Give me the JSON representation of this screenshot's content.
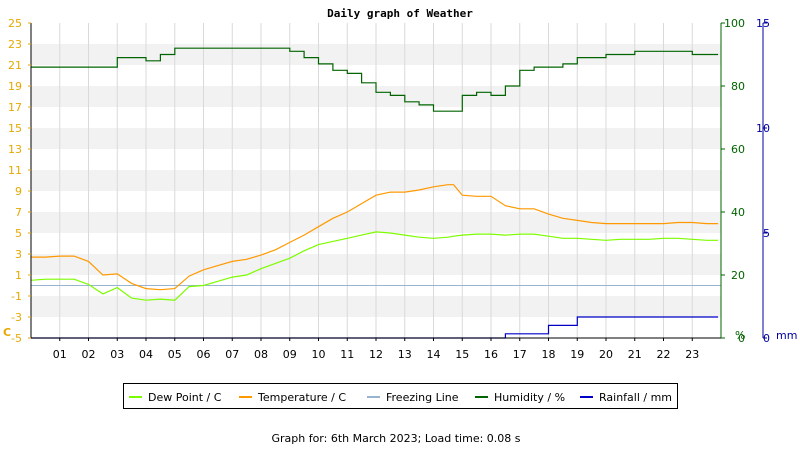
{
  "title": "Daily graph of Weather",
  "footer": "Graph for: 6th March 2023; Load time: 0.08 s",
  "colors": {
    "dew_point": "#7cfc00",
    "temperature": "#ff9900",
    "freezing": "#99b4d1",
    "humidity": "#006400",
    "rainfall": "#0000c8",
    "left_axis": "#e6a800",
    "humidity_axis": "#006400",
    "rain_axis": "#0000a0"
  },
  "chart_data": {
    "type": "line",
    "x_hours": [
      0.0,
      0.5,
      1.0,
      1.5,
      2.0,
      2.5,
      3.0,
      3.5,
      4.0,
      4.5,
      5.0,
      5.5,
      6.0,
      6.5,
      7.0,
      7.5,
      8.0,
      8.5,
      9.0,
      9.5,
      10.0,
      10.5,
      11.0,
      11.5,
      12.0,
      12.5,
      13.0,
      13.5,
      14.0,
      14.5,
      14.7,
      15.0,
      15.5,
      16.0,
      16.5,
      17.0,
      17.5,
      18.0,
      18.5,
      19.0,
      19.5,
      20.0,
      20.5,
      21.0,
      21.5,
      22.0,
      22.5,
      23.0,
      23.5,
      23.9
    ],
    "x_tick_labels": [
      "01",
      "02",
      "03",
      "04",
      "05",
      "06",
      "07",
      "08",
      "09",
      "10",
      "11",
      "12",
      "13",
      "14",
      "15",
      "16",
      "17",
      "18",
      "19",
      "20",
      "21",
      "22",
      "23"
    ],
    "left_axis": {
      "unit_label": "C",
      "range": [
        -5,
        25
      ],
      "tick_labels": [
        "-5",
        "-3",
        "-1",
        "1",
        "3",
        "5",
        "7",
        "9",
        "11",
        "13",
        "15",
        "17",
        "19",
        "21",
        "23",
        "25"
      ]
    },
    "humidity_axis": {
      "unit_label": "%",
      "range": [
        0,
        100
      ],
      "tick_labels": [
        "0",
        "20",
        "40",
        "60",
        "80",
        "100"
      ]
    },
    "rain_axis": {
      "unit_label": "mm",
      "range": [
        0,
        15
      ],
      "tick_labels": [
        "0",
        "5",
        "10",
        "15"
      ]
    },
    "series": [
      {
        "name": "Dew Point / C",
        "axis": "left",
        "values": [
          0.5,
          0.6,
          0.6,
          0.6,
          0.1,
          -0.8,
          -0.2,
          -1.2,
          -1.4,
          -1.3,
          -1.4,
          -0.1,
          0.0,
          0.4,
          0.8,
          1.0,
          1.6,
          2.1,
          2.6,
          3.3,
          3.9,
          4.2,
          4.5,
          4.8,
          5.1,
          5.0,
          4.8,
          4.6,
          4.5,
          4.6,
          4.7,
          4.8,
          4.9,
          4.9,
          4.8,
          4.9,
          4.9,
          4.7,
          4.5,
          4.5,
          4.4,
          4.3,
          4.4,
          4.4,
          4.4,
          4.5,
          4.5,
          4.4,
          4.3,
          4.3
        ]
      },
      {
        "name": "Temperature / C",
        "axis": "left",
        "values": [
          2.7,
          2.7,
          2.8,
          2.8,
          2.3,
          1.0,
          1.1,
          0.2,
          -0.3,
          -0.4,
          -0.3,
          0.9,
          1.5,
          1.9,
          2.3,
          2.5,
          2.9,
          3.4,
          4.1,
          4.8,
          5.6,
          6.4,
          7.0,
          7.8,
          8.6,
          8.9,
          8.9,
          9.1,
          9.4,
          9.6,
          9.6,
          8.6,
          8.5,
          8.5,
          7.6,
          7.3,
          7.3,
          6.8,
          6.4,
          6.2,
          6.0,
          5.9,
          5.9,
          5.9,
          5.9,
          5.9,
          6.0,
          6.0,
          5.9,
          5.9
        ]
      },
      {
        "name": "Freezing Line",
        "axis": "left",
        "values": [
          0,
          0
        ]
      },
      {
        "name": "Humidity / %",
        "axis": "humidity",
        "values": [
          86,
          86,
          86,
          86,
          86,
          86,
          89,
          89,
          88,
          90,
          92,
          92,
          92,
          92,
          92,
          92,
          92,
          92,
          91,
          89,
          87,
          85,
          84,
          81,
          78,
          77,
          75,
          74,
          72,
          72,
          72,
          77,
          78,
          77,
          80,
          85,
          86,
          86,
          87,
          89,
          89,
          90,
          90,
          91,
          91,
          91,
          91,
          90,
          90,
          90
        ]
      },
      {
        "name": "Rainfall / mm",
        "axis": "rain",
        "values": [
          0,
          0,
          0,
          0,
          0,
          0,
          0,
          0,
          0,
          0,
          0,
          0,
          0,
          0,
          0,
          0,
          0,
          0,
          0,
          0,
          0,
          0,
          0,
          0,
          0,
          0,
          0,
          0,
          0,
          0,
          0,
          0,
          0,
          0,
          0.2,
          0.2,
          0.2,
          0.6,
          0.6,
          1.0,
          1.0,
          1.0,
          1.0,
          1.0,
          1.0,
          1.0,
          1.0,
          1.0,
          1.0,
          1.0
        ]
      }
    ],
    "grid": true,
    "legend_position": "bottom"
  }
}
